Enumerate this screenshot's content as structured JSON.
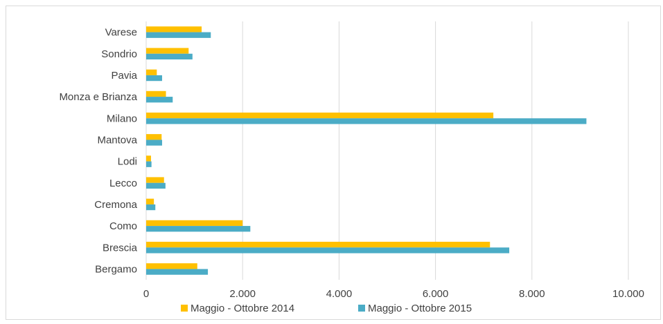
{
  "chart_data": {
    "type": "bar",
    "orientation": "horizontal",
    "categories": [
      "Varese",
      "Sondrio",
      "Pavia",
      "Monza e Brianza",
      "Milano",
      "Mantova",
      "Lodi",
      "Lecco",
      "Cremona",
      "Como",
      "Brescia",
      "Bergamo"
    ],
    "series": [
      {
        "name": "Maggio - Ottobre 2014",
        "color": "#FFC000",
        "values": [
          1150,
          880,
          220,
          410,
          7200,
          320,
          100,
          370,
          160,
          2000,
          7130,
          1060
        ]
      },
      {
        "name": "Maggio - Ottobre 2015",
        "color": "#4BACC6",
        "values": [
          1340,
          960,
          330,
          550,
          9130,
          330,
          110,
          400,
          190,
          2160,
          7530,
          1280
        ]
      }
    ],
    "xlim": [
      0,
      10000
    ],
    "xticks": [
      0,
      2000,
      4000,
      6000,
      8000,
      10000
    ],
    "xtick_labels": [
      "0",
      "2.000",
      "4.000",
      "6.000",
      "8.000",
      "10.000"
    ],
    "grid": true,
    "legend_position": "bottom"
  }
}
